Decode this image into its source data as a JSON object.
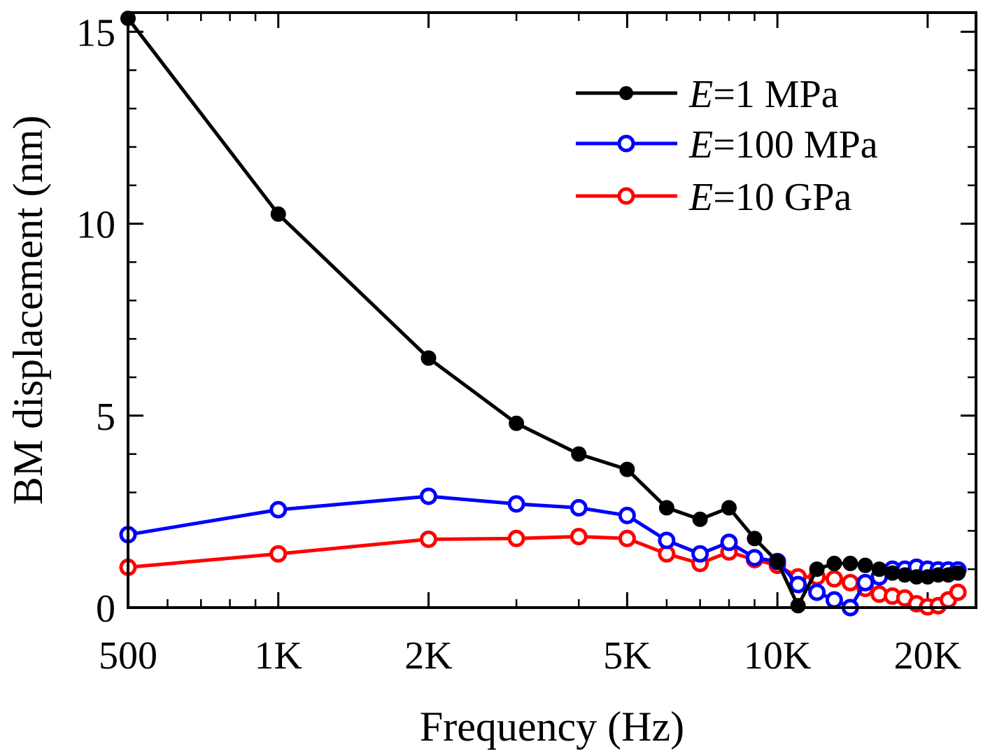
{
  "chart_data": {
    "type": "line",
    "xscale": "log",
    "xlabel": "Frequency (Hz)",
    "ylabel": "BM displacement (nm)",
    "xlim": [
      500,
      25000
    ],
    "ylim": [
      0,
      15.5
    ],
    "xticks": [
      {
        "value": 500,
        "label": "500"
      },
      {
        "value": 1000,
        "label": "1K"
      },
      {
        "value": 2000,
        "label": "2K"
      },
      {
        "value": 5000,
        "label": "5K"
      },
      {
        "value": 10000,
        "label": "10K"
      },
      {
        "value": 20000,
        "label": "20K"
      }
    ],
    "yticks": [
      {
        "value": 0,
        "label": "0"
      },
      {
        "value": 5,
        "label": "5"
      },
      {
        "value": 10,
        "label": "10"
      },
      {
        "value": 15,
        "label": "15"
      }
    ],
    "legend_position": "top-right",
    "series": [
      {
        "name": "E=1 MPa",
        "legend_italic": "E",
        "legend_rest": "=1 MPa",
        "color": "#000000",
        "marker": "filled-circle",
        "x": [
          500,
          1000,
          2000,
          3000,
          4000,
          5000,
          6000,
          7000,
          8000,
          9000,
          10000,
          11000,
          12000,
          13000,
          14000,
          15000,
          16000,
          17000,
          18000,
          19000,
          20000,
          21000,
          22000,
          23000
        ],
        "y": [
          15.35,
          10.25,
          6.5,
          4.8,
          4.0,
          3.6,
          2.6,
          2.3,
          2.6,
          1.8,
          1.2,
          0.05,
          1.0,
          1.15,
          1.15,
          1.1,
          1.0,
          0.9,
          0.85,
          0.8,
          0.8,
          0.85,
          0.85,
          0.9
        ]
      },
      {
        "name": "E=100 MPa",
        "legend_italic": "E",
        "legend_rest": "=100 MPa",
        "color": "#0000ff",
        "marker": "open-circle",
        "x": [
          500,
          1000,
          2000,
          3000,
          4000,
          5000,
          6000,
          7000,
          8000,
          9000,
          10000,
          11000,
          12000,
          13000,
          14000,
          15000,
          16000,
          17000,
          18000,
          19000,
          20000,
          21000,
          22000,
          23000
        ],
        "y": [
          1.9,
          2.55,
          2.9,
          2.7,
          2.6,
          2.4,
          1.75,
          1.4,
          1.7,
          1.3,
          1.2,
          0.6,
          0.4,
          0.2,
          0.0,
          0.65,
          0.8,
          1.0,
          1.0,
          1.05,
          1.0,
          0.98,
          0.98,
          0.98
        ]
      },
      {
        "name": "E=10 GPa",
        "legend_italic": "E",
        "legend_rest": "=10 GPa",
        "color": "#ff0000",
        "marker": "open-circle",
        "x": [
          500,
          1000,
          2000,
          3000,
          4000,
          5000,
          6000,
          7000,
          8000,
          9000,
          10000,
          11000,
          12000,
          13000,
          14000,
          15000,
          16000,
          17000,
          18000,
          19000,
          20000,
          21000,
          22000,
          23000
        ],
        "y": [
          1.05,
          1.4,
          1.78,
          1.8,
          1.85,
          1.8,
          1.4,
          1.15,
          1.45,
          1.25,
          1.1,
          0.8,
          0.8,
          0.75,
          0.65,
          0.5,
          0.35,
          0.3,
          0.25,
          0.1,
          0.02,
          0.05,
          0.2,
          0.4
        ]
      }
    ]
  }
}
